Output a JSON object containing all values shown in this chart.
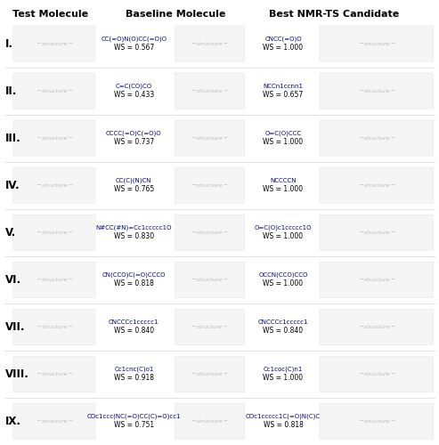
{
  "title_cols": [
    "Test Molecule",
    "Baseline Molecule",
    "Best NMR-TS Candidate"
  ],
  "rows": [
    {
      "label": "I.",
      "baseline_smiles": "CC(=O)N(O)CC(=O)O",
      "baseline_ws": "WS = 0.567",
      "candidate_smiles": "CNCC(=O)O",
      "candidate_ws": "WS = 1.000"
    },
    {
      "label": "II.",
      "baseline_smiles": "C=C(CO)CO",
      "baseline_ws": "WS = 0.433",
      "candidate_smiles": "NCCn1ccnn1",
      "candidate_ws": "WS = 0.657"
    },
    {
      "label": "III.",
      "baseline_smiles": "CCCC(=O)C(=O)O",
      "baseline_ws": "WS = 0.737",
      "candidate_smiles": "O=C(O)CCC",
      "candidate_ws": "WS = 1.000"
    },
    {
      "label": "IV.",
      "baseline_smiles": "CC(C)(N)CN",
      "baseline_ws": "WS = 0.765",
      "candidate_smiles": "NCCCCN",
      "candidate_ws": "WS = 1.000"
    },
    {
      "label": "V.",
      "baseline_smiles": "N#CC(#N)=Cc1ccccc1O",
      "baseline_ws": "WS = 0.830",
      "candidate_smiles": "O=C(O)c1ccccc1O",
      "candidate_ws": "WS = 1.000"
    },
    {
      "label": "VI.",
      "baseline_smiles": "CN(CCO)C(=O)CCCO",
      "baseline_ws": "WS = 0.818",
      "candidate_smiles": "OCCN(CCO)CCO",
      "candidate_ws": "WS = 1.000"
    },
    {
      "label": "VII.",
      "baseline_smiles": "CNCCCc1ccccc1",
      "baseline_ws": "WS = 0.840",
      "candidate_smiles": "CNCCCc1ccccc1",
      "candidate_ws": "WS = 0.840"
    },
    {
      "label": "VIII.",
      "baseline_smiles": "Cc1cnc(C)o1",
      "baseline_ws": "WS = 0.918",
      "candidate_smiles": "Cc1coc(C)n1",
      "candidate_ws": "WS = 1.000"
    },
    {
      "label": "IX.",
      "baseline_smiles": "COc1ccc(NC(=O)CC(C)=O)cc1",
      "baseline_ws": "WS = 0.751",
      "candidate_smiles": "COc1ccccc1C(=O)N(C)C",
      "candidate_ws": "WS = 0.818"
    }
  ],
  "bg_color": "#ffffff",
  "text_color_label": "#000000",
  "text_color_smiles": "#00008B",
  "text_color_ws": "#000000",
  "header_color": "#000000",
  "separator_color": "#cccccc",
  "fig_width": 4.93,
  "fig_height": 5.0,
  "dpi": 100,
  "header_fontsize": 8.0,
  "label_fontsize": 8.5,
  "smiles_fontsize": 5.0,
  "ws_fontsize": 5.5
}
